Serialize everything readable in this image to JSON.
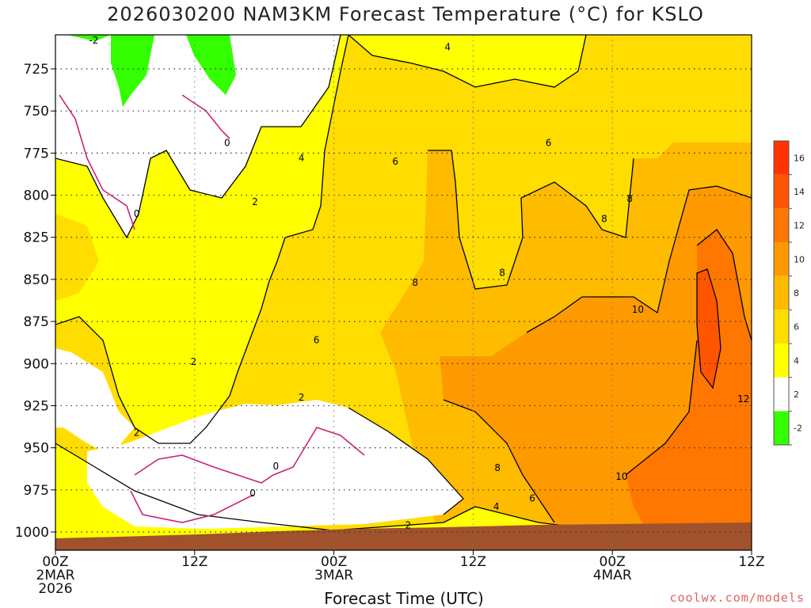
{
  "chart_data": {
    "type": "heatmap",
    "title": "2026030200 NAM3KM Forecast Temperature (°C) for KSLO",
    "xlabel": "Forecast Time (UTC)",
    "ylabel": "",
    "x_ticks": [
      {
        "hours": 0,
        "lines": [
          "00Z",
          "2MAR",
          "2026"
        ]
      },
      {
        "hours": 12,
        "lines": [
          "12Z"
        ]
      },
      {
        "hours": 24,
        "lines": [
          "00Z",
          "3MAR"
        ]
      },
      {
        "hours": 36,
        "lines": [
          "12Z"
        ]
      },
      {
        "hours": 48,
        "lines": [
          "00Z",
          "4MAR"
        ]
      },
      {
        "hours": 60,
        "lines": [
          "12Z"
        ]
      }
    ],
    "xlim_hours": [
      0,
      60
    ],
    "y_ticks": [
      725,
      750,
      775,
      800,
      825,
      850,
      875,
      900,
      925,
      950,
      975,
      1000
    ],
    "ylim": [
      705,
      1010
    ],
    "grid": true,
    "colorbar": {
      "labels": [
        -2,
        2,
        4,
        6,
        8,
        10,
        12,
        14,
        16
      ],
      "colors": [
        "#33ff00",
        "#ffffff",
        "#ffff00",
        "#ffdd00",
        "#ffbb00",
        "#ff9900",
        "#ff7700",
        "#ff5500",
        "#ff3300"
      ]
    },
    "contour_labels": [
      {
        "text": "-2",
        "hours": 3.3,
        "p": 708
      },
      {
        "text": "0",
        "hours": 14.8,
        "p": 769
      },
      {
        "text": "0",
        "hours": 7.0,
        "p": 811
      },
      {
        "text": "4",
        "hours": 33.8,
        "p": 712
      },
      {
        "text": "4",
        "hours": 21.2,
        "p": 778
      },
      {
        "text": "2",
        "hours": 17.2,
        "p": 804
      },
      {
        "text": "6",
        "hours": 29.3,
        "p": 780
      },
      {
        "text": "6",
        "hours": 42.5,
        "p": 769
      },
      {
        "text": "8",
        "hours": 49.5,
        "p": 802
      },
      {
        "text": "8",
        "hours": 47.3,
        "p": 814
      },
      {
        "text": "8",
        "hours": 38.5,
        "p": 846
      },
      {
        "text": "8",
        "hours": 31.0,
        "p": 852
      },
      {
        "text": "10",
        "hours": 50.2,
        "p": 868
      },
      {
        "text": "6",
        "hours": 22.5,
        "p": 886
      },
      {
        "text": "2",
        "hours": 11.9,
        "p": 899
      },
      {
        "text": "2",
        "hours": 7.0,
        "p": 941
      },
      {
        "text": "2",
        "hours": 21.2,
        "p": 920
      },
      {
        "text": "12",
        "hours": 59.3,
        "p": 921
      },
      {
        "text": "10",
        "hours": 48.8,
        "p": 967
      },
      {
        "text": "0",
        "hours": 19.0,
        "p": 961
      },
      {
        "text": "0",
        "hours": 17.0,
        "p": 977
      },
      {
        "text": "8",
        "hours": 38.1,
        "p": 962
      },
      {
        "text": "6",
        "hours": 41.1,
        "p": 980
      },
      {
        "text": "4",
        "hours": 38.0,
        "p": 985
      },
      {
        "text": "2",
        "hours": 30.4,
        "p": 996
      }
    ]
  },
  "credit": "coolwx.com/models"
}
